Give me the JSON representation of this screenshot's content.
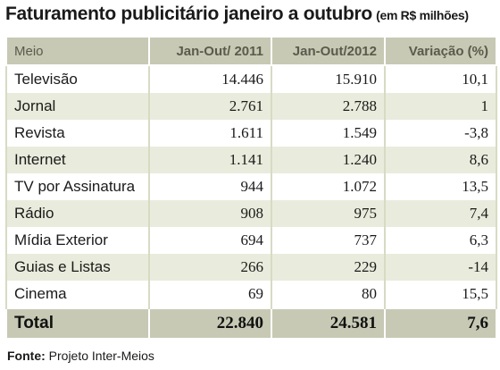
{
  "title": "Faturamento publicitário janeiro a outubro",
  "unit": "(em R$ milhões)",
  "source_label": "Fonte:",
  "source_text": "Projeto Inter-Meios",
  "chart_data": {
    "type": "table",
    "title": "Faturamento publicitário janeiro a outubro",
    "unit": "(em R$ milhões)",
    "columns": [
      "Meio",
      "Jan-Out/ 2011",
      "Jan-Out/2012",
      "Variação (%)"
    ],
    "rows": [
      [
        "Televisão",
        "14.446",
        "15.910",
        "10,1"
      ],
      [
        "Jornal",
        "2.761",
        "2.788",
        "1"
      ],
      [
        "Revista",
        "1.611",
        "1.549",
        "-3,8"
      ],
      [
        "Internet",
        "1.141",
        "1.240",
        "8,6"
      ],
      [
        "TV por Assinatura",
        "944",
        "1.072",
        "13,5"
      ],
      [
        "Rádio",
        "908",
        "975",
        "7,4"
      ],
      [
        "Mídia Exterior",
        "694",
        "737",
        "6,3"
      ],
      [
        "Guias e Listas",
        "266",
        "229",
        "-14"
      ],
      [
        "Cinema",
        "69",
        "80",
        "15,5"
      ]
    ],
    "total": [
      "Total",
      "22.840",
      "24.581",
      "7,6"
    ],
    "source": "Fonte: Projeto Inter-Meios"
  }
}
